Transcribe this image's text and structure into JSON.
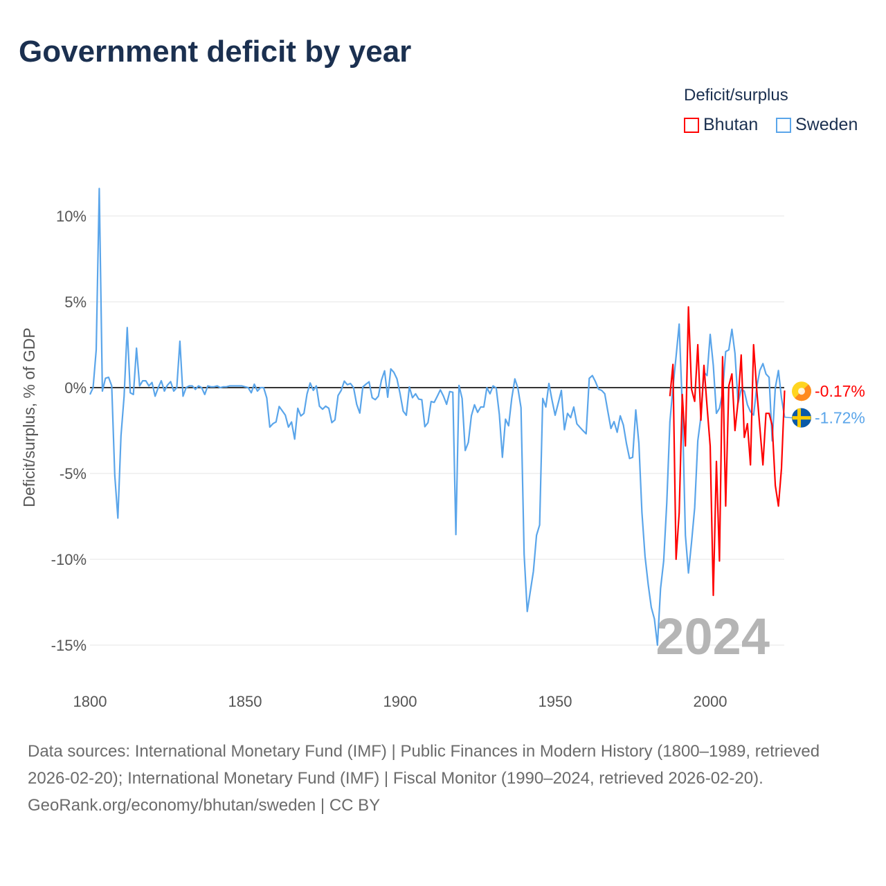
{
  "title": "Government deficit by year",
  "legend": {
    "title": "Deficit/surplus",
    "items": [
      {
        "name": "Bhutan",
        "color": "#ff0000"
      },
      {
        "name": "Sweden",
        "color": "#5aa5ea"
      }
    ]
  },
  "year_watermark": "2024",
  "end_labels": {
    "bhutan": "-0.17%",
    "sweden": "-1.72%"
  },
  "flags": {
    "bhutan": "bhutan-flag-icon",
    "sweden": "sweden-flag-icon"
  },
  "footer": {
    "sources": "Data sources: International Monetary Fund (IMF) | Public Finances in Modern History (1800–1989, retrieved 2026-02-20); International Monetary Fund (IMF) | Fiscal Monitor (1990–2024, retrieved 2026-02-20).",
    "attribution": "GeoRank.org/economy/bhutan/sweden | CC BY"
  },
  "chart_data": {
    "type": "line",
    "title": "Government deficit by year",
    "xlabel": "",
    "ylabel": "Deficit/surplus, % of GDP",
    "xlim": [
      1800,
      2024
    ],
    "ylim": [
      -17,
      11.7
    ],
    "x_ticks": [
      1800,
      1850,
      1900,
      1950,
      2000
    ],
    "x_tick_labels": [
      "1800",
      "1850",
      "1900",
      "1950",
      "2000"
    ],
    "y_ticks": [
      10,
      5,
      0,
      -5,
      -10,
      -15
    ],
    "y_tick_labels": [
      "10%",
      "5%",
      "0%",
      "-5%",
      "-10%",
      "-15%"
    ],
    "grid": true,
    "legend_position": "top-right",
    "series": [
      {
        "name": "Sweden",
        "color": "#5aa5ea",
        "start_year": 1800,
        "values": [
          -0.4,
          0,
          2.2,
          11.6,
          -0.2,
          0.55,
          0.6,
          0.1,
          -5.1,
          -7.6,
          -2.8,
          -0.5,
          3.5,
          -0.3,
          -0.4,
          2.3,
          0.1,
          0.4,
          0.4,
          0.1,
          0.3,
          -0.5,
          0,
          0.4,
          -0.2,
          0.15,
          0.35,
          -0.2,
          0,
          2.7,
          -0.5,
          0,
          0.1,
          0.1,
          -0.1,
          0.1,
          0,
          -0.4,
          0.1,
          0.05,
          0.05,
          0.1,
          0,
          0.05,
          0.05,
          0.1,
          0.1,
          0.1,
          0.1,
          0.1,
          0.05,
          0,
          -0.3,
          0.2,
          -0.2,
          0,
          0,
          -0.6,
          -2.3,
          -2.1,
          -2.0,
          -1.1,
          -1.35,
          -1.6,
          -2.3,
          -2.0,
          -3.0,
          -1.2,
          -1.65,
          -1.5,
          -0.36,
          0.27,
          -0.16,
          0.1,
          -1.08,
          -1.26,
          -1.08,
          -1.2,
          -2.04,
          -1.88,
          -0.46,
          -0.16,
          0.38,
          0.17,
          0.24,
          0,
          -0.97,
          -1.48,
          0.04,
          0.2,
          0.34,
          -0.59,
          -0.7,
          -0.5,
          0.44,
          0.98,
          -0.56,
          1.09,
          0.89,
          0.51,
          -0.36,
          -1.37,
          -1.61,
          0.04,
          -0.59,
          -0.36,
          -0.67,
          -0.7,
          -2.28,
          -2.04,
          -0.81,
          -0.86,
          -0.5,
          -0.13,
          -0.5,
          -0.97,
          -0.23,
          -0.27,
          -8.56,
          0.13,
          -0.63,
          -3.66,
          -3.19,
          -1.64,
          -1.0,
          -1.44,
          -1.13,
          -1.13,
          0,
          -0.36,
          0.1,
          -0.03,
          -1.57,
          -4.06,
          -1.84,
          -2.22,
          -0.63,
          0.51,
          -0.03,
          -1.17,
          -9.7,
          -13.04,
          -11.85,
          -10.7,
          -8.6,
          -8.0,
          -0.63,
          -1.13,
          0.24,
          -0.73,
          -1.61,
          -0.9,
          -0.16,
          -2.45,
          -1.5,
          -1.75,
          -1.13,
          -2.11,
          -2.31,
          -2.51,
          -2.69,
          0.54,
          0.7,
          0.35,
          -0.09,
          -0.16,
          -0.36,
          -1.4,
          -2.38,
          -1.98,
          -2.6,
          -1.64,
          -2.18,
          -3.25,
          -4.13,
          -4.06,
          -1.3,
          -3.25,
          -7.28,
          -9.84,
          -11.45,
          -12.8,
          -13.47,
          -15.0,
          -11.7,
          -10.1,
          -6.7,
          -2.0,
          0.0,
          1.8,
          3.7,
          -1.1,
          -8.6,
          -10.8,
          -9.0,
          -7.0,
          -3.1,
          -1.7,
          0.9,
          0.7,
          3.1,
          1.3,
          -1.5,
          -1.2,
          -0.3,
          2.1,
          2.2,
          3.4,
          2.0,
          -0.9,
          -0.1,
          -0.2,
          -1.0,
          -1.4,
          -1.6,
          0.0,
          1.0,
          1.4,
          0.8,
          0.6,
          -3.1,
          0.0,
          1.0,
          -0.6,
          -1.72
        ]
      },
      {
        "name": "Bhutan",
        "color": "#ff0000",
        "start_year": 1987,
        "values": [
          -0.5,
          1.35,
          -10.0,
          -7.3,
          -0.4,
          -3.4,
          4.7,
          -0.1,
          -0.8,
          2.5,
          -1.9,
          1.3,
          -1.1,
          -3.4,
          -12.1,
          -4.3,
          -10.1,
          1.8,
          -6.9,
          0.1,
          0.8,
          -2.5,
          -0.8,
          1.9,
          -2.9,
          -2.1,
          -4.5,
          2.5,
          -0.1,
          -2.3,
          -4.5,
          -1.5,
          -1.5,
          -2.2,
          -5.7,
          -6.9,
          -4.7,
          -0.17
        ]
      }
    ]
  }
}
